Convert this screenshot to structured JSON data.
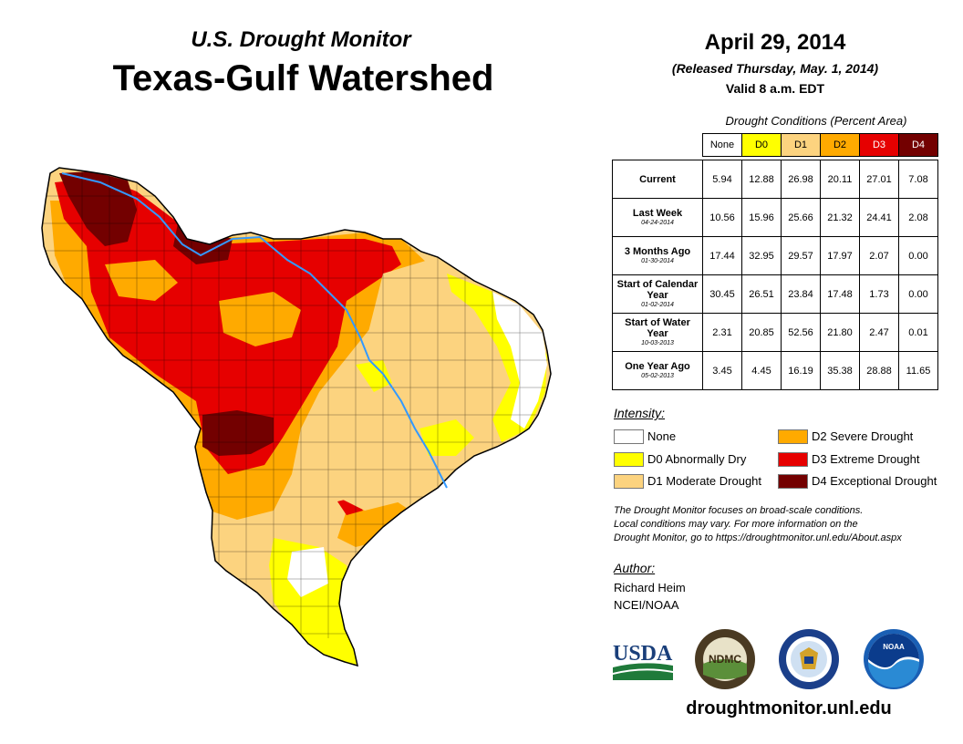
{
  "header": {
    "subtitle": "U.S. Drought Monitor",
    "title": "Texas-Gulf Watershed",
    "date": "April 29, 2014",
    "released": "(Released Thursday, May. 1, 2014)",
    "valid": "Valid 8 a.m. EDT"
  },
  "table": {
    "caption": "Drought Conditions (Percent Area)",
    "columns": [
      "None",
      "D0",
      "D1",
      "D2",
      "D3",
      "D4"
    ],
    "column_colors": [
      "#ffffff",
      "#ffff00",
      "#fcd37f",
      "#ffaa00",
      "#e60000",
      "#730000"
    ],
    "rows": [
      {
        "label": "Current",
        "date": "",
        "values": [
          "5.94",
          "12.88",
          "26.98",
          "20.11",
          "27.01",
          "7.08"
        ]
      },
      {
        "label": "Last Week",
        "date": "04-24-2014",
        "values": [
          "10.56",
          "15.96",
          "25.66",
          "21.32",
          "24.41",
          "2.08"
        ]
      },
      {
        "label": "3 Months Ago",
        "date": "01-30-2014",
        "values": [
          "17.44",
          "32.95",
          "29.57",
          "17.97",
          "2.07",
          "0.00"
        ]
      },
      {
        "label": "Start of Calendar Year",
        "date": "01-02-2014",
        "values": [
          "30.45",
          "26.51",
          "23.84",
          "17.48",
          "1.73",
          "0.00"
        ]
      },
      {
        "label": "Start of Water Year",
        "date": "10-03-2013",
        "values": [
          "2.31",
          "20.85",
          "52.56",
          "21.80",
          "2.47",
          "0.01"
        ]
      },
      {
        "label": "One Year Ago",
        "date": "05-02-2013",
        "values": [
          "3.45",
          "4.45",
          "16.19",
          "35.38",
          "28.88",
          "11.65"
        ]
      }
    ]
  },
  "legend": {
    "title": "Intensity:",
    "items": [
      {
        "label": "None",
        "color": "#ffffff"
      },
      {
        "label": "D0 Abnormally Dry",
        "color": "#ffff00"
      },
      {
        "label": "D1 Moderate Drought",
        "color": "#fcd37f"
      },
      {
        "label": "D2 Severe Drought",
        "color": "#ffaa00"
      },
      {
        "label": "D3 Extreme Drought",
        "color": "#e60000"
      },
      {
        "label": "D4 Exceptional Drought",
        "color": "#730000"
      }
    ]
  },
  "note": {
    "line1": "The Drought Monitor focuses on broad-scale conditions.",
    "line2": "Local conditions may vary. For more information on the",
    "line3": "Drought Monitor, go to https://droughtmonitor.unl.edu/About.aspx"
  },
  "author": {
    "title": "Author:",
    "name": "Richard Heim",
    "org": "NCEI/NOAA"
  },
  "logos": {
    "usda": "USDA",
    "ndmc": "NDMC",
    "noaa": "NOAA"
  },
  "footer": {
    "url": "droughtmonitor.unl.edu"
  },
  "map": {
    "river_color": "#3399ff"
  }
}
